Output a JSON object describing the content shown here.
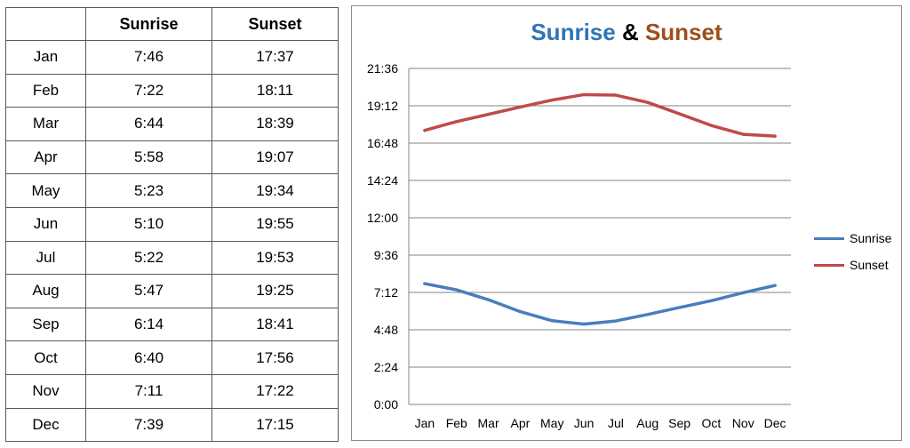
{
  "table": {
    "headers": [
      "",
      "Sunrise",
      "Sunset"
    ],
    "rows": [
      {
        "month": "Jan",
        "sunrise": "7:46",
        "sunset": "17:37"
      },
      {
        "month": "Feb",
        "sunrise": "7:22",
        "sunset": "18:11"
      },
      {
        "month": "Mar",
        "sunrise": "6:44",
        "sunset": "18:39"
      },
      {
        "month": "Apr",
        "sunrise": "5:58",
        "sunset": "19:07"
      },
      {
        "month": "May",
        "sunrise": "5:23",
        "sunset": "19:34"
      },
      {
        "month": "Jun",
        "sunrise": "5:10",
        "sunset": "19:55"
      },
      {
        "month": "Jul",
        "sunrise": "5:22",
        "sunset": "19:53"
      },
      {
        "month": "Aug",
        "sunrise": "5:47",
        "sunset": "19:25"
      },
      {
        "month": "Sep",
        "sunrise": "6:14",
        "sunset": "18:41"
      },
      {
        "month": "Oct",
        "sunrise": "6:40",
        "sunset": "17:56"
      },
      {
        "month": "Nov",
        "sunrise": "7:11",
        "sunset": "17:22"
      },
      {
        "month": "Dec",
        "sunrise": "7:39",
        "sunset": "17:15"
      }
    ]
  },
  "chart_data": {
    "type": "line",
    "title_parts": [
      {
        "text": "Sunrise",
        "color": "#2e75b6"
      },
      {
        "text": " & ",
        "color": "#000000"
      },
      {
        "text": "Sunset",
        "color": "#9c4f1a"
      }
    ],
    "categories": [
      "Jan",
      "Feb",
      "Mar",
      "Apr",
      "May",
      "Jun",
      "Jul",
      "Aug",
      "Sep",
      "Oct",
      "Nov",
      "Dec"
    ],
    "series": [
      {
        "name": "Sunrise",
        "color": "#4a7ebb",
        "values": [
          "7:46",
          "7:22",
          "6:44",
          "5:58",
          "5:23",
          "5:10",
          "5:22",
          "5:47",
          "6:14",
          "6:40",
          "7:11",
          "7:39"
        ]
      },
      {
        "name": "Sunset",
        "color": "#be4b48",
        "values": [
          "17:37",
          "18:11",
          "18:39",
          "19:07",
          "19:34",
          "19:55",
          "19:53",
          "19:25",
          "18:41",
          "17:56",
          "17:22",
          "17:15"
        ]
      }
    ],
    "y_ticks": [
      "0:00",
      "2:24",
      "4:48",
      "7:12",
      "9:36",
      "12:00",
      "14:24",
      "16:48",
      "19:12",
      "21:36"
    ],
    "ylim": [
      "0:00",
      "21:36"
    ],
    "grid": true,
    "legend_position": "right"
  }
}
